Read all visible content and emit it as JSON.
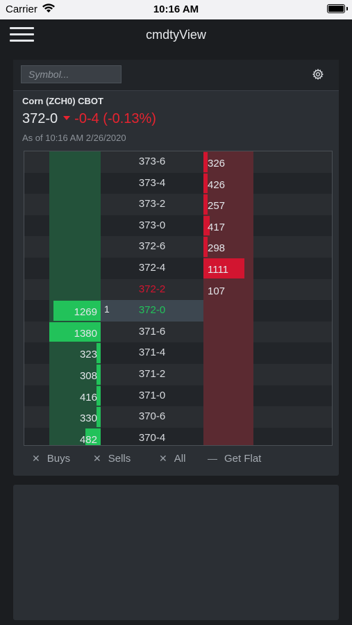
{
  "status_bar": {
    "carrier": "Carrier",
    "time": "10:16 AM"
  },
  "nav": {
    "title": "cmdtyView"
  },
  "search": {
    "placeholder": "Symbol..."
  },
  "quote": {
    "instrument": "Corn (ZCH0) CBOT",
    "last": "372-0",
    "change": "-0-4 (-0.13%)",
    "as_of": "As of 10:16 AM 2/26/2020"
  },
  "colors": {
    "up": "#22c25a",
    "down": "#d21530",
    "change": "#e8232f"
  },
  "ladder": {
    "rows": [
      {
        "price": "373-6",
        "buy": "",
        "sell": "326",
        "sell_level": 0.05,
        "buy_level": 0
      },
      {
        "price": "373-4",
        "buy": "",
        "sell": "426",
        "sell_level": 0.05,
        "buy_level": 0
      },
      {
        "price": "373-2",
        "buy": "",
        "sell": "257",
        "sell_level": 0.04,
        "buy_level": 0
      },
      {
        "price": "373-0",
        "buy": "",
        "sell": "417",
        "sell_level": 0.12,
        "buy_level": 0
      },
      {
        "price": "372-6",
        "buy": "",
        "sell": "298",
        "sell_level": 0.05,
        "buy_level": 0
      },
      {
        "price": "372-4",
        "buy": "",
        "sell": "1111",
        "sell_level": 0.82,
        "buy_level": 0
      },
      {
        "price": "372-2",
        "buy": "",
        "sell": "107",
        "sell_level": 0,
        "buy_level": 0,
        "price_color": "#d21530"
      },
      {
        "price": "372-0",
        "buy": "1269",
        "sell": "",
        "sell_level": 0,
        "buy_level": 0.92,
        "price_color": "#22c25a",
        "last_volume": "1",
        "highlight": true
      },
      {
        "price": "371-6",
        "buy": "1380",
        "sell": "",
        "sell_level": 0,
        "buy_level": 1.0
      },
      {
        "price": "371-4",
        "buy": "323",
        "sell": "",
        "sell_level": 0,
        "buy_level": 0.05
      },
      {
        "price": "371-2",
        "buy": "308",
        "sell": "",
        "sell_level": 0,
        "buy_level": 0.05
      },
      {
        "price": "371-0",
        "buy": "416",
        "sell": "",
        "sell_level": 0,
        "buy_level": 0.05
      },
      {
        "price": "370-6",
        "buy": "330",
        "sell": "",
        "sell_level": 0,
        "buy_level": 0.05
      },
      {
        "price": "370-4",
        "buy": "482",
        "sell": "",
        "sell_level": 0,
        "buy_level": 0.3
      }
    ]
  },
  "footer": {
    "buys": "Buys",
    "sells": "Sells",
    "all": "All",
    "get_flat": "Get Flat",
    "x_glyph": "✕",
    "dash_glyph": "—"
  },
  "icons": {
    "menu": "hamburger-icon",
    "settings": "gear-icon",
    "wifi": "wifi-icon",
    "battery": "battery-icon"
  }
}
